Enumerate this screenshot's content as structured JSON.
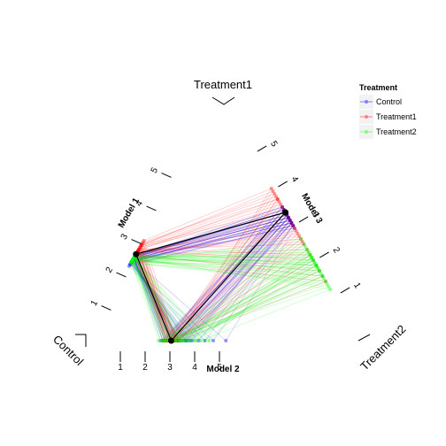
{
  "chart_data": {
    "type": "parallel-triangle",
    "legend": {
      "title": "Treatment",
      "placement": "right",
      "entries": [
        {
          "name": "Control",
          "color": "#7f7fff"
        },
        {
          "name": "Treatment1",
          "color": "#ff7f7f"
        },
        {
          "name": "Treatment2",
          "color": "#7fff7f"
        }
      ]
    },
    "corner_labels": [
      "Treatment1",
      "Control",
      "Treatment2"
    ],
    "axes": [
      {
        "name": "Model 1",
        "ticks": [
          "1",
          "2",
          "3",
          "4",
          "5"
        ]
      },
      {
        "name": "Model 2",
        "ticks": [
          "1",
          "2",
          "3",
          "4",
          "5"
        ]
      },
      {
        "name": "Model 3",
        "ticks": [
          "1",
          "2",
          "3",
          "4",
          "5"
        ]
      }
    ],
    "series": [
      {
        "name": "Control",
        "color": "#0000ff",
        "model1": [
          3.9,
          3.7,
          3.8,
          3.6,
          3.9,
          3.5,
          3.8,
          3.7,
          3.6,
          3.4,
          3.9,
          3.7,
          3.8,
          3.6,
          3.5,
          3.7,
          3.9,
          3.8,
          3.6,
          3.7,
          3.3,
          3.8,
          3.7,
          3.5,
          3.6,
          3.9,
          3.8,
          3.7,
          3.6,
          3.4
        ],
        "model2": [
          2.0,
          2.4,
          1.8,
          2.6,
          2.2,
          3.0,
          1.9,
          2.3,
          2.8,
          3.5,
          2.1,
          2.5,
          1.7,
          2.9,
          3.2,
          2.4,
          2.0,
          1.9,
          2.7,
          4.8,
          3.8,
          2.2,
          2.6,
          3.1,
          2.3,
          1.8,
          2.0,
          2.5,
          2.9,
          4.2
        ],
        "model3": [
          4.0,
          3.8,
          4.1,
          3.7,
          3.9,
          3.6,
          4.2,
          3.8,
          3.7,
          3.5,
          4.0,
          3.9,
          4.1,
          3.6,
          3.7,
          3.8,
          4.0,
          3.9,
          3.6,
          3.4,
          3.5,
          4.1,
          3.8,
          3.7,
          3.9,
          4.2,
          4.0,
          3.8,
          3.6,
          3.5
        ]
      },
      {
        "name": "Treatment1",
        "color": "#ff0000",
        "model1": [
          4.5,
          4.2,
          4.0,
          3.9,
          4.7,
          4.3,
          4.1,
          3.8,
          4.6,
          4.4,
          4.0,
          4.2,
          3.9,
          4.8,
          4.3,
          4.1,
          4.5,
          3.7,
          4.2,
          4.0,
          4.4,
          4.6,
          3.9,
          4.1,
          4.3,
          4.0,
          4.5,
          4.2,
          3.8,
          4.1
        ],
        "model2": [
          2.1,
          2.3,
          1.9,
          2.5,
          2.2,
          2.0,
          2.4,
          2.6,
          2.1,
          1.8,
          2.3,
          2.2,
          2.0,
          2.4,
          2.5,
          2.1,
          1.9,
          2.6,
          2.3,
          2.0,
          2.2,
          2.4,
          2.1,
          2.5,
          1.9,
          2.3,
          2.2,
          2.0,
          2.4,
          2.1
        ],
        "model3": [
          4.8,
          4.5,
          3.9,
          3.5,
          4.6,
          4.2,
          3.0,
          2.6,
          4.7,
          4.0,
          3.7,
          2.2,
          3.3,
          4.9,
          2.8,
          3.6,
          4.4,
          1.4,
          2.0,
          3.8,
          4.3,
          4.5,
          1.8,
          3.2,
          2.4,
          1.6,
          4.1,
          3.4,
          2.9,
          3.1
        ]
      },
      {
        "name": "Treatment2",
        "color": "#00ff00",
        "model1": [
          3.8,
          3.6,
          3.9,
          3.7,
          3.5,
          3.8,
          3.6,
          3.9,
          3.7,
          3.6,
          3.8,
          3.5,
          3.7,
          3.9,
          3.6,
          3.8,
          3.7,
          3.5,
          3.9,
          3.6,
          3.8,
          3.7,
          3.6,
          3.9,
          3.5,
          3.8,
          3.7,
          3.6,
          3.8,
          3.9
        ],
        "model2": [
          1.6,
          2.0,
          2.4,
          1.8,
          2.2,
          2.6,
          3.0,
          1.9,
          2.3,
          2.7,
          3.4,
          1.7,
          2.1,
          2.5,
          2.9,
          3.8,
          1.8,
          2.2,
          2.6,
          3.1,
          4.0,
          2.0,
          2.4,
          2.8,
          1.9,
          3.3,
          2.3,
          2.7,
          3.6,
          2.1
        ],
        "model3": [
          2.0,
          1.8,
          2.3,
          2.5,
          1.5,
          2.1,
          1.9,
          2.7,
          2.2,
          1.6,
          2.4,
          1.3,
          2.0,
          2.6,
          1.7,
          2.3,
          2.8,
          1.4,
          2.1,
          1.9,
          2.5,
          1.2,
          2.2,
          1.8,
          3.0,
          2.0,
          1.6,
          2.4,
          1.1,
          2.3
        ]
      },
      {
        "name": "",
        "color": "#000000",
        "model1": [
          4.0
        ],
        "model2": [
          2.2
        ],
        "model3": [
          4.0
        ]
      }
    ]
  }
}
